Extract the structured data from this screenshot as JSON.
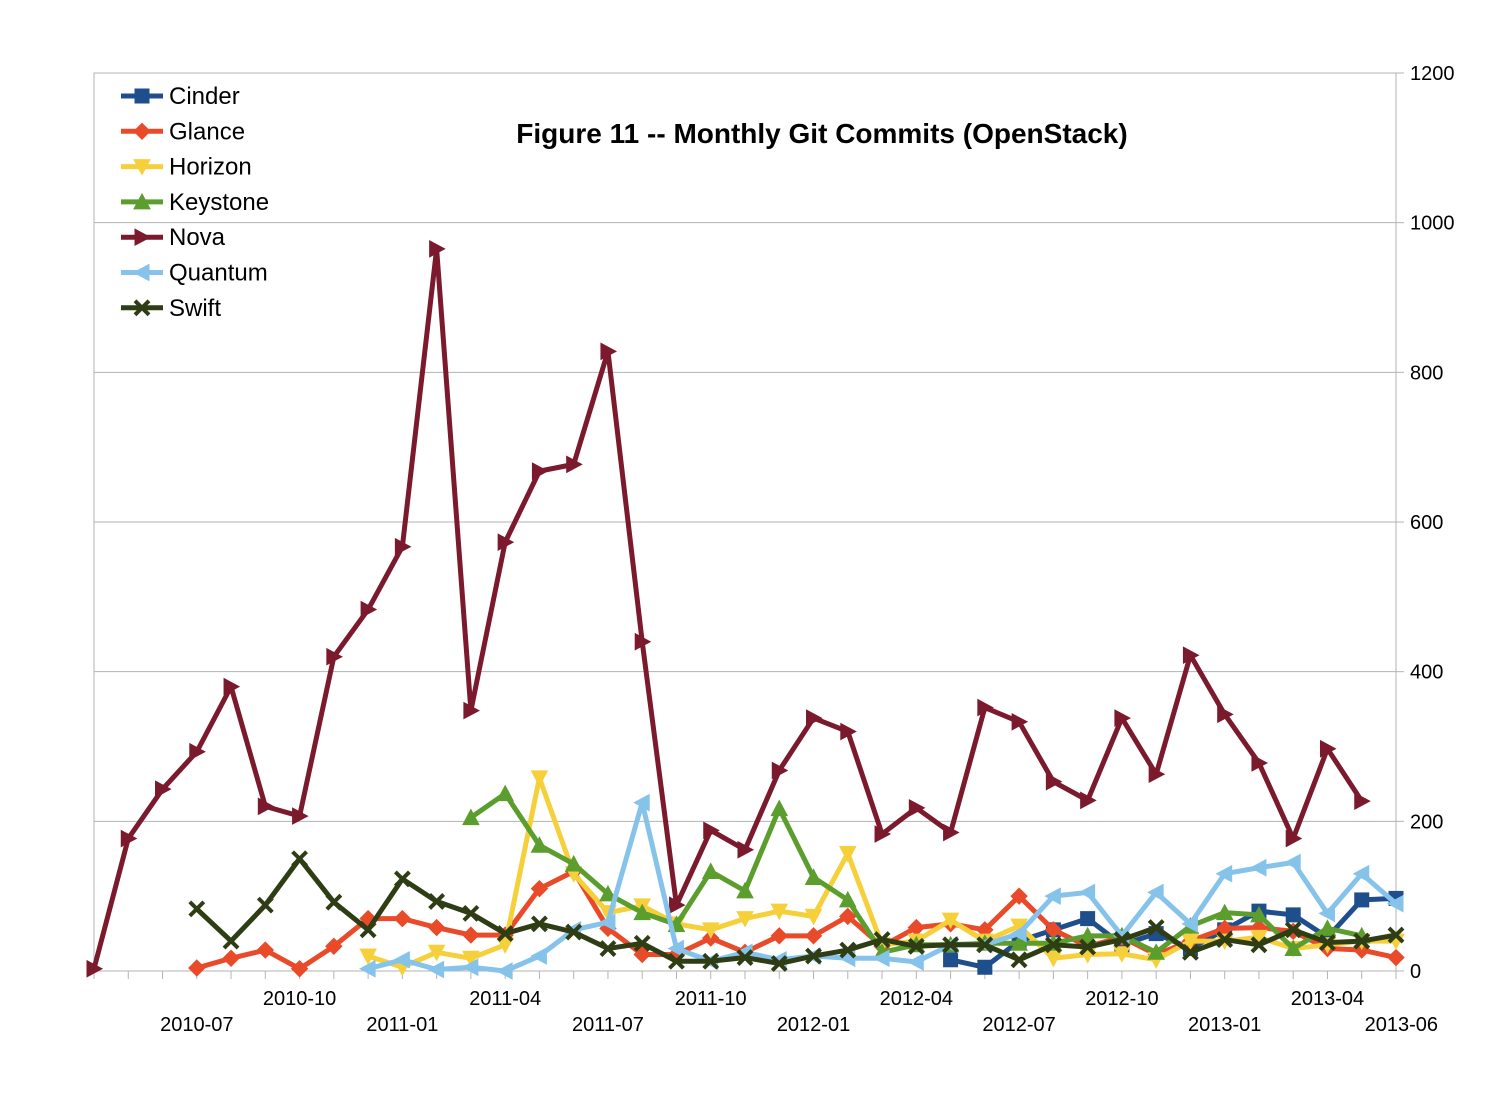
{
  "chart_data": {
    "type": "line",
    "title": "Figure 11 -- Monthly Git Commits (OpenStack)",
    "xlabel": "",
    "ylabel": "",
    "y_axis_side": "right",
    "ylim": [
      0,
      1200
    ],
    "yticks": [
      0,
      200,
      400,
      600,
      800,
      1000,
      1200
    ],
    "grid": "horizontal",
    "legend_position": "top-left",
    "x": [
      "2010-04",
      "2010-05",
      "2010-06",
      "2010-07",
      "2010-08",
      "2010-09",
      "2010-10",
      "2010-11",
      "2010-12",
      "2011-01",
      "2011-02",
      "2011-03",
      "2011-04",
      "2011-05",
      "2011-06",
      "2011-07",
      "2011-08",
      "2011-09",
      "2011-10",
      "2011-11",
      "2011-12",
      "2012-01",
      "2012-02",
      "2012-03",
      "2012-04",
      "2012-05",
      "2012-06",
      "2012-07",
      "2012-08",
      "2012-09",
      "2012-10",
      "2012-11",
      "2012-12",
      "2013-01",
      "2013-02",
      "2013-03",
      "2013-04",
      "2013-05",
      "2013-06"
    ],
    "xtick_labels_upper": [
      "2010-10",
      "2011-04",
      "2011-10",
      "2012-04",
      "2012-10",
      "2013-04"
    ],
    "xtick_labels_lower": [
      "2010-07",
      "2011-01",
      "2011-07",
      "2012-01",
      "2012-07",
      "2013-01",
      "2013-06"
    ],
    "series": [
      {
        "name": "Cinder",
        "color": "#1f4e8c",
        "marker": "square",
        "values": [
          null,
          null,
          null,
          null,
          null,
          null,
          null,
          null,
          null,
          null,
          null,
          null,
          null,
          null,
          null,
          null,
          null,
          null,
          null,
          null,
          null,
          null,
          null,
          null,
          null,
          15,
          5,
          40,
          55,
          70,
          35,
          50,
          30,
          55,
          80,
          75,
          45,
          95,
          97
        ]
      },
      {
        "name": "Glance",
        "color": "#e84a2a",
        "marker": "diamond",
        "values": [
          null,
          null,
          null,
          4,
          17,
          28,
          3,
          33,
          70,
          70,
          58,
          48,
          48,
          110,
          133,
          57,
          22,
          22,
          44,
          25,
          47,
          47,
          73,
          33,
          58,
          63,
          55,
          100,
          55,
          33,
          45,
          22,
          40,
          57,
          58,
          53,
          30,
          28,
          18
        ]
      },
      {
        "name": "Horizon",
        "color": "#f5d03a",
        "marker": "triangle-down",
        "values": [
          null,
          null,
          null,
          null,
          null,
          null,
          null,
          null,
          20,
          5,
          25,
          17,
          35,
          258,
          130,
          78,
          87,
          63,
          55,
          70,
          80,
          73,
          157,
          35,
          40,
          68,
          40,
          60,
          17,
          22,
          23,
          15,
          40,
          40,
          45,
          30,
          35,
          40,
          40
        ]
      },
      {
        "name": "Keystone",
        "color": "#5b9e2d",
        "marker": "triangle-up",
        "values": [
          null,
          null,
          null,
          null,
          null,
          null,
          null,
          null,
          null,
          null,
          null,
          205,
          237,
          168,
          143,
          103,
          78,
          62,
          133,
          107,
          217,
          125,
          95,
          25,
          35,
          35,
          37,
          37,
          37,
          47,
          47,
          25,
          60,
          78,
          75,
          30,
          57,
          47,
          null
        ]
      },
      {
        "name": "Nova",
        "color": "#7b1a2c",
        "marker": "triangle-right",
        "values": [
          3,
          177,
          243,
          293,
          380,
          220,
          207,
          420,
          483,
          567,
          965,
          348,
          573,
          668,
          677,
          828,
          440,
          88,
          188,
          162,
          268,
          338,
          320,
          183,
          218,
          185,
          352,
          333,
          253,
          228,
          338,
          263,
          422,
          343,
          278,
          177,
          297,
          227,
          null
        ]
      },
      {
        "name": "Quantum",
        "color": "#86c3ea",
        "marker": "triangle-left",
        "values": [
          null,
          null,
          null,
          null,
          null,
          null,
          null,
          null,
          3,
          15,
          2,
          5,
          0,
          20,
          55,
          65,
          225,
          30,
          13,
          25,
          15,
          20,
          17,
          17,
          12,
          35,
          35,
          50,
          100,
          105,
          47,
          105,
          63,
          130,
          138,
          145,
          77,
          130,
          90
        ]
      },
      {
        "name": "Swift",
        "color": "#2e3d14",
        "marker": "x",
        "values": [
          null,
          null,
          null,
          83,
          40,
          88,
          150,
          92,
          55,
          123,
          93,
          77,
          50,
          63,
          52,
          30,
          37,
          13,
          13,
          18,
          10,
          20,
          28,
          42,
          33,
          35,
          35,
          15,
          35,
          32,
          42,
          58,
          25,
          42,
          35,
          55,
          38,
          40,
          48
        ]
      }
    ]
  }
}
